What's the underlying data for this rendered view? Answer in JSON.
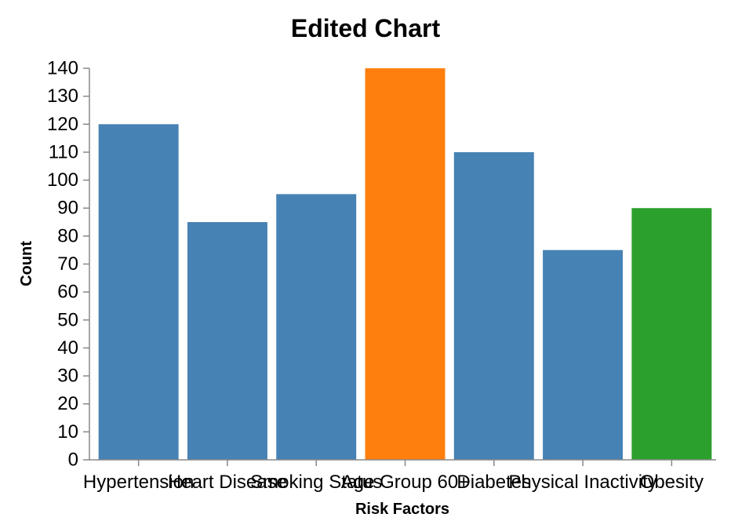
{
  "chart_data": {
    "type": "bar",
    "title": "Edited Chart",
    "xlabel": "Risk Factors",
    "ylabel": "Count",
    "categories": [
      "Hypertension",
      "Heart Disease",
      "Smoking Status",
      "Age Group 60+",
      "Diabetes",
      "Physical Inactivity",
      "Obesity"
    ],
    "values": [
      120,
      85,
      95,
      140,
      110,
      75,
      90
    ],
    "colors": [
      "#4682b4",
      "#4682b4",
      "#4682b4",
      "#ff7f0e",
      "#4682b4",
      "#4682b4",
      "#2ca02c"
    ],
    "ylim": [
      0,
      140
    ],
    "yticks": [
      0,
      10,
      20,
      30,
      40,
      50,
      60,
      70,
      80,
      90,
      100,
      110,
      120,
      130,
      140
    ],
    "grid": false,
    "legend": "none"
  }
}
